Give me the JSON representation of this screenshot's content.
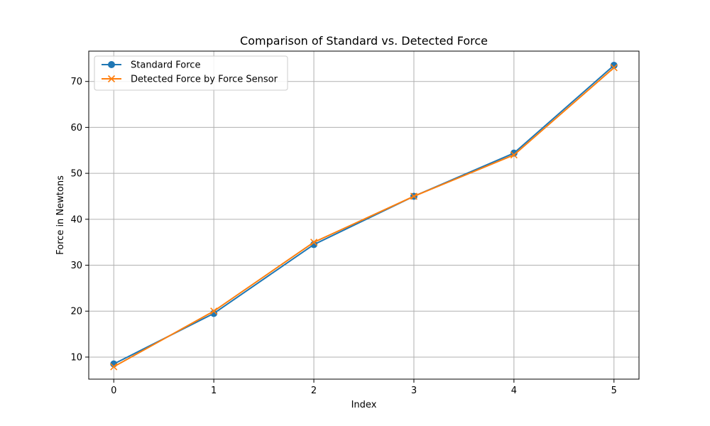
{
  "chart_data": {
    "type": "line",
    "title": "Comparison of Standard vs. Detected Force",
    "xlabel": "Index",
    "ylabel": "Force in Newtons",
    "x": [
      0,
      1,
      2,
      3,
      4,
      5
    ],
    "x_ticks": [
      "0",
      "1",
      "2",
      "3",
      "4",
      "5"
    ],
    "y_ticks": [
      "10",
      "20",
      "30",
      "40",
      "50",
      "60",
      "70"
    ],
    "xlim": [
      -0.25,
      5.25
    ],
    "ylim": [
      5.2,
      76.6
    ],
    "grid": true,
    "legend_position": "top-left",
    "series": [
      {
        "name": "Standard Force",
        "color": "#1f77b4",
        "marker": "circle",
        "values": [
          8.5,
          19.5,
          34.5,
          45.0,
          54.4,
          73.5
        ]
      },
      {
        "name": "Detected Force by Force Sensor",
        "color": "#ff7f0e",
        "marker": "x",
        "values": [
          7.9,
          20.0,
          35.0,
          45.0,
          54.0,
          73.0
        ]
      }
    ]
  }
}
